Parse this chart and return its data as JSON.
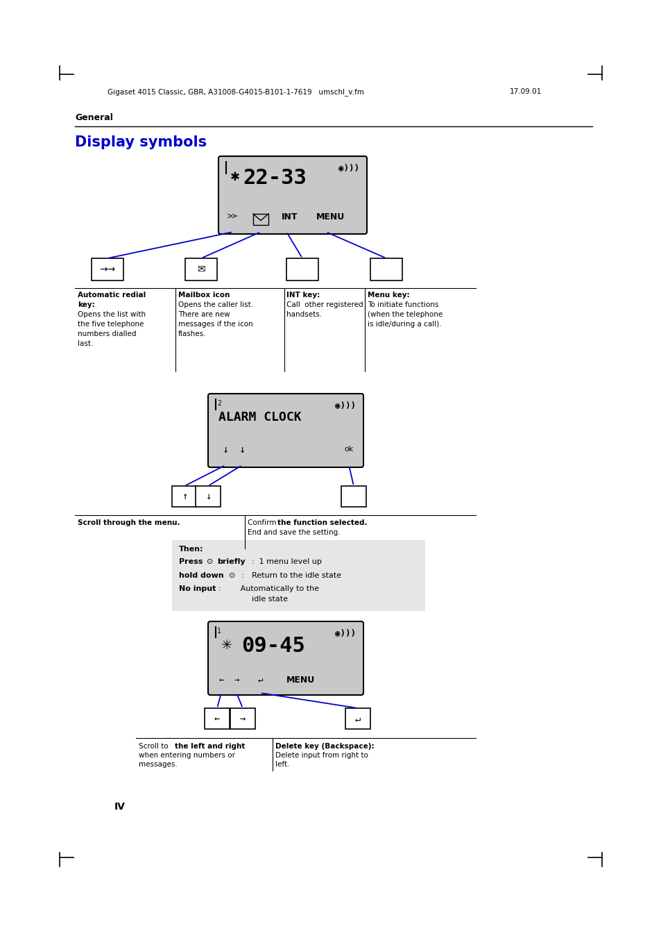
{
  "bg_color": "#ffffff",
  "page_width": 9.54,
  "page_height": 13.51,
  "header_text": "Gigaset 4015 Classic, GBR, A31008-G4015-B101-1-7619   umschl_v.fm",
  "header_date": "17.09.01",
  "section_label": "General",
  "title": "Display symbols",
  "title_color": "#0000cc",
  "footer_text": "IV",
  "blue_color": "#0000cc",
  "gray_screen": "#c8c8c8",
  "gray_box": "#e8e8e8"
}
